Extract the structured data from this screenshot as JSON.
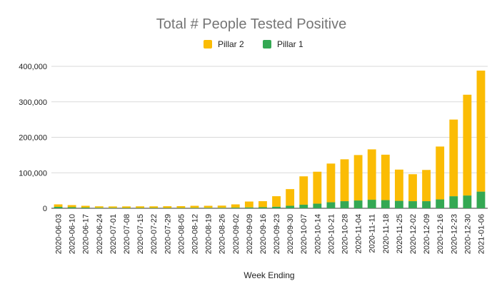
{
  "chart_data": {
    "type": "bar",
    "stacked": true,
    "title": "Total # People Tested Positive",
    "xlabel": "Week Ending",
    "ylabel": "",
    "ylim": [
      0,
      400000
    ],
    "yticks": [
      "0",
      "100,000",
      "200,000",
      "300,000",
      "400,000"
    ],
    "grid": true,
    "legend_position": "top",
    "categories": [
      "2020-06-03",
      "2020-06-10",
      "2020-06-17",
      "2020-06-24",
      "2020-07-01",
      "2020-07-08",
      "2020-07-15",
      "2020-07-22",
      "2020-07-29",
      "2020-08-05",
      "2020-08-12",
      "2020-08-19",
      "2020-08-26",
      "2020-09-02",
      "2020-09-09",
      "2020-09-16",
      "2020-09-23",
      "2020-09-30",
      "2020-10-07",
      "2020-10-14",
      "2020-10-21",
      "2020-10-28",
      "2020-11-04",
      "2020-11-11",
      "2020-11-18",
      "2020-11-25",
      "2020-12-02",
      "2020-12-09",
      "2020-12-16",
      "2020-12-23",
      "2020-12-30",
      "2021-01-06"
    ],
    "series": [
      {
        "name": "Pillar 1",
        "color": "#34a853",
        "values": [
          4000,
          3000,
          2000,
          1500,
          1200,
          1000,
          1000,
          1000,
          900,
          1000,
          1200,
          1300,
          1400,
          1800,
          2500,
          3000,
          4500,
          7000,
          10000,
          13000,
          17000,
          20000,
          22000,
          24000,
          23000,
          21000,
          20000,
          20000,
          25000,
          34000,
          36000,
          47000
        ]
      },
      {
        "name": "Pillar 2",
        "color": "#fbbc04",
        "values": [
          7000,
          6000,
          5000,
          4000,
          4000,
          4300,
          4500,
          4500,
          4900,
          5000,
          5800,
          5700,
          6100,
          9200,
          16500,
          17000,
          29500,
          47000,
          80000,
          90000,
          109000,
          118000,
          128000,
          142000,
          128000,
          88000,
          76000,
          88000,
          149000,
          216000,
          284000,
          341000
        ]
      }
    ]
  }
}
